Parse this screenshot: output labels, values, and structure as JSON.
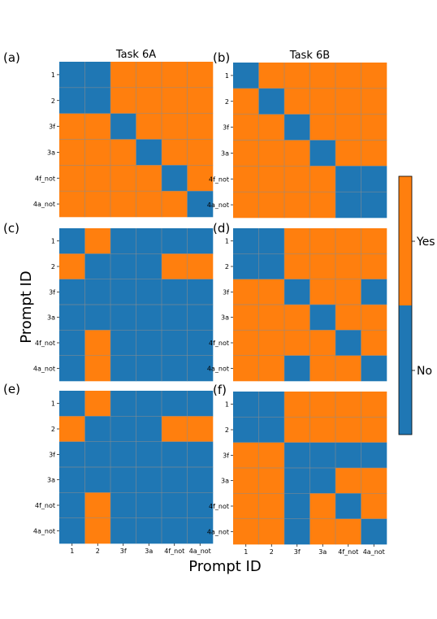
{
  "figure": {
    "ylabel": "Prompt ID",
    "xlabel": "Prompt ID",
    "colorbar": {
      "labels": [
        "Yes",
        "No"
      ]
    },
    "colors": {
      "yes": "#ff7f0e",
      "no": "#1f77b4",
      "grid": "#8c8c8c"
    }
  },
  "chart_data": [
    {
      "type": "heatmap",
      "panel": "(a)",
      "title": "Task 6A",
      "rows": [
        "1",
        "2",
        "3f",
        "3a",
        "4f_not",
        "4a_not"
      ],
      "cols": [
        "1",
        "2",
        "3f",
        "3a",
        "4f_not",
        "4a_not"
      ],
      "show_xticks": false,
      "values": [
        [
          0,
          0,
          1,
          1,
          1,
          1
        ],
        [
          0,
          0,
          1,
          1,
          1,
          1
        ],
        [
          1,
          1,
          0,
          1,
          1,
          1
        ],
        [
          1,
          1,
          1,
          0,
          1,
          1
        ],
        [
          1,
          1,
          1,
          1,
          0,
          1
        ],
        [
          1,
          1,
          1,
          1,
          1,
          0
        ]
      ]
    },
    {
      "type": "heatmap",
      "panel": "(b)",
      "title": "Task 6B",
      "rows": [
        "1",
        "2",
        "3f",
        "3a",
        "4f_not",
        "4a_not"
      ],
      "cols": [
        "1",
        "2",
        "3f",
        "3a",
        "4f_not",
        "4a_not"
      ],
      "show_xticks": false,
      "values": [
        [
          0,
          1,
          1,
          1,
          1,
          1
        ],
        [
          1,
          0,
          1,
          1,
          1,
          1
        ],
        [
          1,
          1,
          0,
          1,
          1,
          1
        ],
        [
          1,
          1,
          1,
          0,
          1,
          1
        ],
        [
          1,
          1,
          1,
          1,
          0,
          0
        ],
        [
          1,
          1,
          1,
          1,
          0,
          0
        ]
      ]
    },
    {
      "type": "heatmap",
      "panel": "(c)",
      "title": "",
      "rows": [
        "1",
        "2",
        "3f",
        "3a",
        "4f_not",
        "4a_not"
      ],
      "cols": [
        "1",
        "2",
        "3f",
        "3a",
        "4f_not",
        "4a_not"
      ],
      "show_xticks": false,
      "values": [
        [
          0,
          1,
          0,
          0,
          0,
          0
        ],
        [
          1,
          0,
          0,
          0,
          1,
          1
        ],
        [
          0,
          0,
          0,
          0,
          0,
          0
        ],
        [
          0,
          0,
          0,
          0,
          0,
          0
        ],
        [
          0,
          1,
          0,
          0,
          0,
          0
        ],
        [
          0,
          1,
          0,
          0,
          0,
          0
        ]
      ]
    },
    {
      "type": "heatmap",
      "panel": "(d)",
      "title": "",
      "rows": [
        "1",
        "2",
        "3f",
        "3a",
        "4f_not",
        "4a_not"
      ],
      "cols": [
        "1",
        "2",
        "3f",
        "3a",
        "4f_not",
        "4a_not"
      ],
      "show_xticks": false,
      "values": [
        [
          0,
          0,
          1,
          1,
          1,
          1
        ],
        [
          0,
          0,
          1,
          1,
          1,
          1
        ],
        [
          1,
          1,
          0,
          1,
          1,
          0
        ],
        [
          1,
          1,
          1,
          0,
          1,
          1
        ],
        [
          1,
          1,
          1,
          1,
          0,
          1
        ],
        [
          1,
          1,
          0,
          1,
          1,
          0
        ]
      ]
    },
    {
      "type": "heatmap",
      "panel": "(e)",
      "title": "",
      "rows": [
        "1",
        "2",
        "3f",
        "3a",
        "4f_not",
        "4a_not"
      ],
      "cols": [
        "1",
        "2",
        "3f",
        "3a",
        "4f_not",
        "4a_not"
      ],
      "show_xticks": true,
      "values": [
        [
          0,
          1,
          0,
          0,
          0,
          0
        ],
        [
          1,
          0,
          0,
          0,
          1,
          1
        ],
        [
          0,
          0,
          0,
          0,
          0,
          0
        ],
        [
          0,
          0,
          0,
          0,
          0,
          0
        ],
        [
          0,
          1,
          0,
          0,
          0,
          0
        ],
        [
          0,
          1,
          0,
          0,
          0,
          0
        ]
      ]
    },
    {
      "type": "heatmap",
      "panel": "(f)",
      "title": "",
      "rows": [
        "1",
        "2",
        "3f",
        "3a",
        "4f_not",
        "4a_not"
      ],
      "cols": [
        "1",
        "2",
        "3f",
        "3a",
        "4f_not",
        "4a_not"
      ],
      "show_xticks": true,
      "values": [
        [
          0,
          0,
          1,
          1,
          1,
          1
        ],
        [
          0,
          0,
          1,
          1,
          1,
          1
        ],
        [
          1,
          1,
          0,
          0,
          0,
          0
        ],
        [
          1,
          1,
          0,
          0,
          1,
          1
        ],
        [
          1,
          1,
          0,
          1,
          0,
          1
        ],
        [
          1,
          1,
          0,
          1,
          1,
          0
        ]
      ]
    }
  ]
}
